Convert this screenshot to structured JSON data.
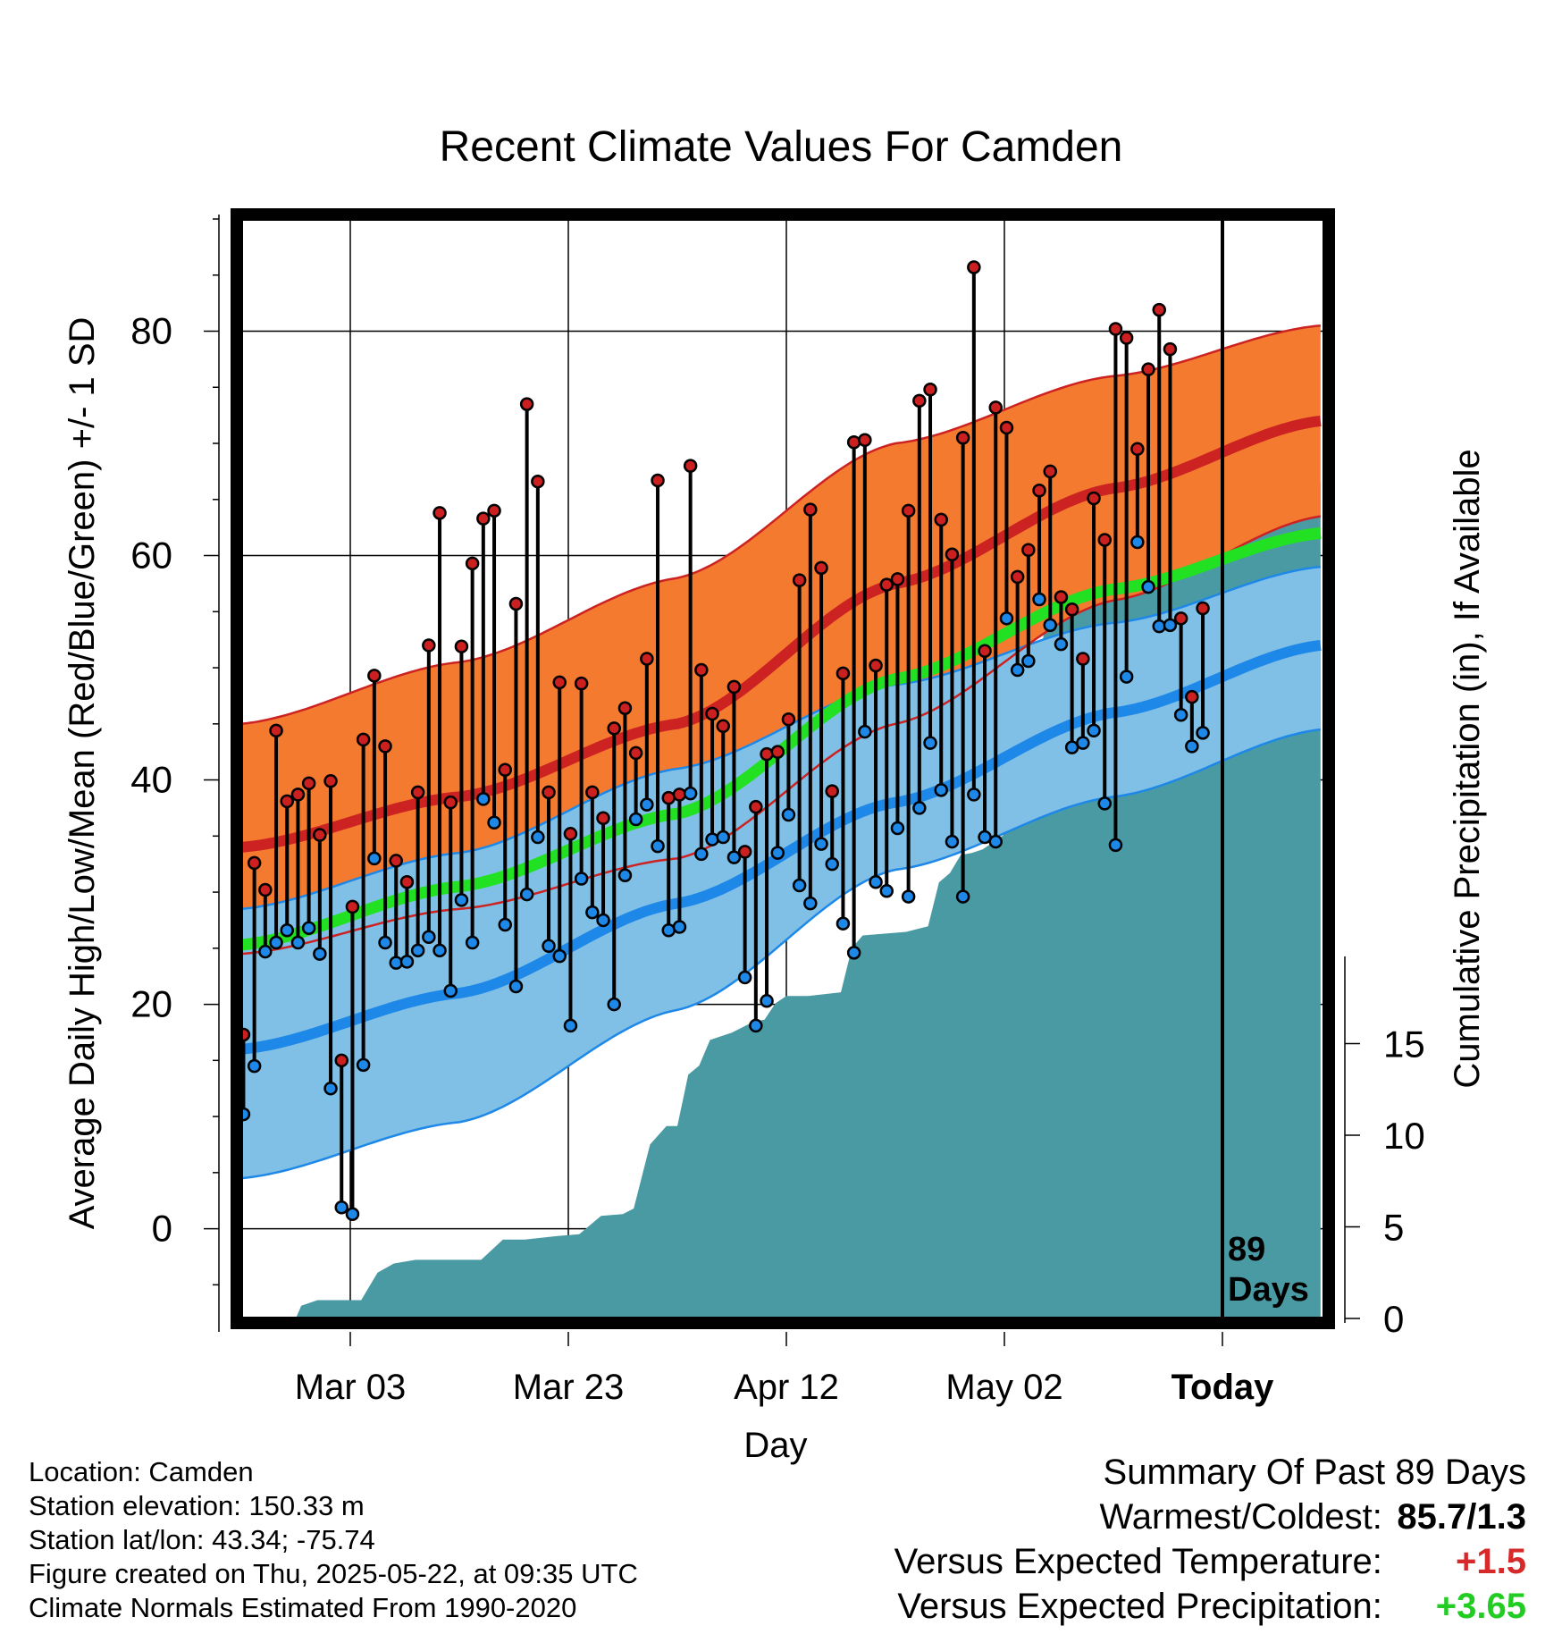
{
  "title": "Recent Climate Values For Camden",
  "info": {
    "location": "Location: Camden",
    "elevation": "Station elevation: 150.33 m",
    "latlon": "Station lat/lon: 43.34; -75.74",
    "created": "Figure created on Thu, 2025-05-22, at 09:35 UTC",
    "normals": "Climate Normals Estimated From 1990-2020"
  },
  "summary": {
    "heading": "Summary Of Past 89 Days",
    "warmcold_label": "Warmest/Coldest:",
    "warmcold_value": "85.7/1.3",
    "temp_label": "Versus Expected Temperature:",
    "temp_value": "+1.5",
    "precip_label": "Versus Expected Precipitation:",
    "precip_value": "+3.65"
  },
  "colors": {
    "high_band": "#f47a30",
    "high_line": "#cc2222",
    "low_band": "#80c0e6",
    "low_line": "#1e88e8",
    "mean_line": "#22e022",
    "precip": "#4a9aa4",
    "high_dot": "#cc2020",
    "low_dot": "#1e88e8"
  },
  "chart_data": {
    "type": "line",
    "xlabel": "Day",
    "ylabel": "Average Daily High/Low/Mean (Red/Blue/Green) +/- 1 SD",
    "y2label": "Cumulative Precipitation (in), If Available",
    "ylim": [
      -8,
      90
    ],
    "y2lim": [
      0,
      60
    ],
    "xlim": [
      "Feb 21",
      "Jun 01"
    ],
    "x_ticks": [
      {
        "day": 10,
        "label": "Mar 03"
      },
      {
        "day": 30,
        "label": "Mar 23"
      },
      {
        "day": 50,
        "label": "Apr 12"
      },
      {
        "day": 70,
        "label": "May 02"
      },
      {
        "day": 90,
        "label": "Today"
      }
    ],
    "y_ticks": [
      0,
      20,
      40,
      60,
      80
    ],
    "y2_ticks": [
      0,
      5,
      10,
      15
    ],
    "today_label": "89\nDays",
    "normal_high": {
      "day": [
        0,
        20,
        40,
        60,
        80,
        99
      ],
      "mean": [
        34,
        38.5,
        45,
        57.5,
        66,
        72
      ],
      "upper": [
        45,
        50.5,
        58,
        70,
        76,
        80.5
      ],
      "lower": [
        24.5,
        28.5,
        33,
        45,
        56,
        63.5
      ]
    },
    "normal_low": {
      "day": [
        0,
        20,
        40,
        60,
        80,
        99
      ],
      "mean": [
        16,
        21,
        29,
        38,
        46,
        52
      ],
      "upper": [
        28.5,
        33.5,
        41,
        48.5,
        54,
        59
      ],
      "lower": [
        4.5,
        9.5,
        19.5,
        32,
        38.5,
        44.5
      ]
    },
    "normal_mean": {
      "day": [
        0,
        20,
        40,
        60,
        80,
        99
      ],
      "values": [
        25.3,
        30.5,
        37,
        49,
        57,
        62
      ]
    },
    "daily": {
      "day": [
        0,
        1,
        2,
        3,
        4,
        5,
        6,
        7,
        8,
        9,
        10,
        11,
        12,
        13,
        14,
        15,
        16,
        17,
        18,
        19,
        20,
        21,
        22,
        23,
        24,
        25,
        26,
        27,
        28,
        29,
        30,
        31,
        32,
        33,
        34,
        35,
        36,
        37,
        38,
        39,
        40,
        41,
        42,
        43,
        44,
        45,
        46,
        47,
        48,
        49,
        50,
        51,
        52,
        53,
        54,
        55,
        56,
        57,
        58,
        59,
        60,
        61,
        62,
        63,
        64,
        65,
        66,
        67,
        68,
        69,
        70,
        71,
        72,
        73,
        74,
        75,
        76,
        77,
        78,
        79,
        80,
        81,
        82,
        83,
        84,
        85,
        86,
        87,
        88
      ],
      "high": [
        17.3,
        32.6,
        30.2,
        44.4,
        38.1,
        38.7,
        39.7,
        35.1,
        39.9,
        15.0,
        28.7,
        43.6,
        49.3,
        43.0,
        32.8,
        30.9,
        38.9,
        52.0,
        63.8,
        38.0,
        51.9,
        59.3,
        63.3,
        64.0,
        40.9,
        55.7,
        73.5,
        66.6,
        38.9,
        48.7,
        35.2,
        48.6,
        38.9,
        36.6,
        44.6,
        46.4,
        42.4,
        50.8,
        66.7,
        38.4,
        38.7,
        68.0,
        49.8,
        45.9,
        44.8,
        48.3,
        33.6,
        37.6,
        42.3,
        42.5,
        45.4,
        57.8,
        64.1,
        58.9,
        39.0,
        49.5,
        70.1,
        70.3,
        50.2,
        57.4,
        57.9,
        64.0,
        73.8,
        74.8,
        63.2,
        60.1,
        70.5,
        85.7,
        51.5,
        73.2,
        71.4,
        58.1,
        60.5,
        65.8,
        67.5,
        56.3,
        55.2,
        50.8,
        65.1,
        61.4,
        80.2,
        79.4,
        69.5,
        76.6,
        81.9,
        78.4,
        54.4,
        47.4,
        55.3
      ],
      "low": [
        10.2,
        14.5,
        24.7,
        25.5,
        26.6,
        25.5,
        26.8,
        24.5,
        12.5,
        1.9,
        1.3,
        14.6,
        33.0,
        25.5,
        23.7,
        23.8,
        24.8,
        26.0,
        24.8,
        21.2,
        29.3,
        25.5,
        38.3,
        36.2,
        27.1,
        21.6,
        29.8,
        34.9,
        25.2,
        24.3,
        18.1,
        31.2,
        28.2,
        27.5,
        20.0,
        31.5,
        36.5,
        37.8,
        34.1,
        26.6,
        26.9,
        38.8,
        33.4,
        34.7,
        34.9,
        33.1,
        22.4,
        18.1,
        20.3,
        33.5,
        36.9,
        30.6,
        29.0,
        34.3,
        32.5,
        27.2,
        24.6,
        44.3,
        30.9,
        30.1,
        35.7,
        29.6,
        37.5,
        43.3,
        39.1,
        34.5,
        29.6,
        38.7,
        34.9,
        34.5,
        54.4,
        49.8,
        50.6,
        56.1,
        53.8,
        52.1,
        42.9,
        43.3,
        44.4,
        37.9,
        34.2,
        49.2,
        61.2,
        57.2,
        53.7,
        53.8,
        45.8,
        43.0,
        44.2
      ]
    },
    "precip": {
      "day": [
        -1,
        5,
        5.5,
        7,
        8.5,
        11,
        12.5,
        14,
        16,
        18,
        22,
        24,
        26,
        29,
        31,
        33,
        35,
        36,
        37.5,
        39,
        40,
        41,
        42,
        43,
        45,
        47,
        48,
        49,
        50,
        50.5,
        52,
        55,
        56,
        57,
        59,
        61,
        63,
        64,
        65,
        66,
        67,
        68,
        70,
        71,
        72,
        73,
        73.5,
        74,
        75,
        76,
        77,
        78,
        79,
        80,
        81,
        82,
        83,
        84,
        85,
        86,
        87,
        89,
        99
      ],
      "values": [
        0,
        0,
        0.7,
        1.0,
        1.0,
        1.0,
        2.5,
        3.0,
        3.2,
        3.2,
        3.2,
        4.3,
        4.3,
        4.5,
        4.6,
        5.6,
        5.7,
        6.0,
        9.5,
        10.5,
        10.5,
        13.3,
        13.8,
        15.2,
        15.6,
        16.2,
        16.3,
        17.2,
        17.6,
        17.6,
        17.6,
        17.8,
        20.2,
        20.9,
        21.0,
        21.1,
        21.4,
        23.8,
        24.3,
        25.3,
        25.4,
        25.6,
        26.4,
        27.6,
        28.9,
        31.9,
        36.8,
        39.8,
        40.8,
        41.8,
        42.0,
        42.0,
        42.0,
        42.1,
        42.1,
        42.3,
        45.0,
        45.6,
        45.6,
        45.6,
        45.6,
        45.6,
        45.6
      ]
    }
  }
}
